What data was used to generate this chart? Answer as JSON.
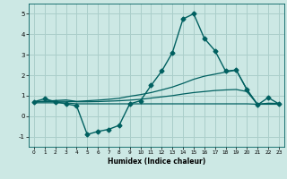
{
  "xlabel": "Humidex (Indice chaleur)",
  "background_color": "#cce8e4",
  "grid_color": "#aaceca",
  "line_color": "#006060",
  "xlim": [
    -0.5,
    23.5
  ],
  "ylim": [
    -1.5,
    5.5
  ],
  "yticks": [
    -1,
    0,
    1,
    2,
    3,
    4,
    5
  ],
  "xticks": [
    0,
    1,
    2,
    3,
    4,
    5,
    6,
    7,
    8,
    9,
    10,
    11,
    12,
    13,
    14,
    15,
    16,
    17,
    18,
    19,
    20,
    21,
    22,
    23
  ],
  "series": [
    {
      "x": [
        0,
        1,
        2,
        3,
        4,
        5,
        6,
        7,
        8,
        9,
        10,
        11,
        12,
        13,
        14,
        15,
        16,
        17,
        18,
        19,
        20,
        21,
        22,
        23
      ],
      "y": [
        0.7,
        0.85,
        0.7,
        0.6,
        0.5,
        -0.9,
        -0.75,
        -0.65,
        -0.45,
        0.6,
        0.75,
        1.5,
        2.2,
        3.1,
        4.75,
        5.0,
        3.8,
        3.2,
        2.2,
        2.25,
        1.3,
        0.55,
        0.9,
        0.6
      ],
      "marker": "D",
      "markersize": 2.5,
      "linewidth": 1.0
    },
    {
      "x": [
        0,
        1,
        2,
        3,
        4,
        5,
        6,
        7,
        8,
        9,
        10,
        11,
        12,
        13,
        14,
        15,
        16,
        17,
        18,
        19,
        20,
        21,
        22,
        23
      ],
      "y": [
        0.7,
        0.73,
        0.76,
        0.79,
        0.72,
        0.75,
        0.78,
        0.82,
        0.87,
        0.97,
        1.05,
        1.15,
        1.28,
        1.42,
        1.6,
        1.8,
        1.95,
        2.05,
        2.15,
        2.25,
        1.3,
        0.58,
        0.63,
        0.62
      ],
      "marker": null,
      "markersize": 0,
      "linewidth": 0.9
    },
    {
      "x": [
        0,
        1,
        2,
        3,
        4,
        5,
        6,
        7,
        8,
        9,
        10,
        11,
        12,
        13,
        14,
        15,
        16,
        17,
        18,
        19,
        20,
        21,
        22,
        23
      ],
      "y": [
        0.7,
        0.71,
        0.72,
        0.72,
        0.7,
        0.7,
        0.71,
        0.73,
        0.75,
        0.78,
        0.82,
        0.88,
        0.94,
        1.0,
        1.08,
        1.15,
        1.2,
        1.25,
        1.28,
        1.3,
        1.2,
        0.58,
        0.6,
        0.6
      ],
      "marker": null,
      "markersize": 0,
      "linewidth": 0.9
    },
    {
      "x": [
        0,
        1,
        2,
        3,
        4,
        5,
        6,
        7,
        8,
        9,
        10,
        11,
        12,
        13,
        14,
        15,
        16,
        17,
        18,
        19,
        20,
        21,
        22,
        23
      ],
      "y": [
        0.65,
        0.65,
        0.65,
        0.65,
        0.6,
        0.6,
        0.6,
        0.6,
        0.6,
        0.6,
        0.6,
        0.6,
        0.6,
        0.6,
        0.6,
        0.6,
        0.6,
        0.6,
        0.6,
        0.6,
        0.6,
        0.58,
        0.58,
        0.58
      ],
      "marker": null,
      "markersize": 0,
      "linewidth": 0.9
    }
  ]
}
